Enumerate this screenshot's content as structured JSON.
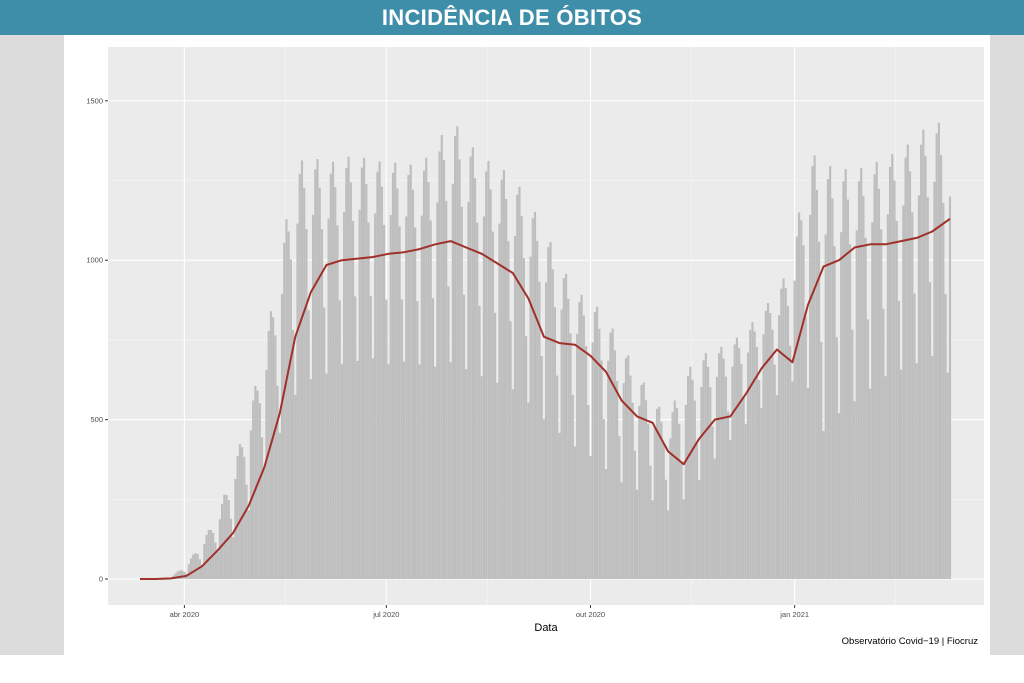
{
  "header": {
    "title": "INCIDÊNCIA DE ÓBITOS"
  },
  "caption": "Observatório Covid−19 | Fiocruz",
  "colors": {
    "header_bg": "#3e8ea9",
    "panel_bg": "#ebebeb",
    "bar": "#bebebe",
    "line": "#a0302a"
  },
  "chart_data": {
    "type": "bar",
    "xlabel": "Data",
    "ylabel": "",
    "ylim": [
      0,
      1650
    ],
    "yticks": [
      0,
      500,
      1000,
      1500
    ],
    "xticks": [
      {
        "date": "2020-04-01",
        "label": "abr 2020"
      },
      {
        "date": "2020-07-01",
        "label": "jul 2020"
      },
      {
        "date": "2020-10-01",
        "label": "out 2020"
      },
      {
        "date": "2021-01-01",
        "label": "jan 2021"
      }
    ],
    "grid": true,
    "start_date": "2020-03-12",
    "end_date": "2021-03-12",
    "series": [
      {
        "kind": "bar",
        "dates": [
          "2020-03-12",
          "2020-03-19",
          "2020-03-26",
          "2020-04-02",
          "2020-04-09",
          "2020-04-16",
          "2020-04-23",
          "2020-04-30",
          "2020-05-07",
          "2020-05-14",
          "2020-05-21",
          "2020-05-28",
          "2020-06-04",
          "2020-06-11",
          "2020-06-18",
          "2020-06-25",
          "2020-07-02",
          "2020-07-09",
          "2020-07-16",
          "2020-07-23",
          "2020-07-30",
          "2020-08-06",
          "2020-08-13",
          "2020-08-20",
          "2020-08-27",
          "2020-09-03",
          "2020-09-10",
          "2020-09-17",
          "2020-09-24",
          "2020-10-01",
          "2020-10-08",
          "2020-10-15",
          "2020-10-22",
          "2020-10-29",
          "2020-11-05",
          "2020-11-12",
          "2020-11-19",
          "2020-11-26",
          "2020-12-03",
          "2020-12-10",
          "2020-12-17",
          "2020-12-24",
          "2020-12-31",
          "2021-01-07",
          "2021-01-14",
          "2021-01-21",
          "2021-01-28",
          "2021-02-04",
          "2021-02-11",
          "2021-02-18",
          "2021-02-25",
          "2021-03-04",
          "2021-03-12"
        ],
        "lows": [
          0,
          0,
          2,
          15,
          40,
          80,
          120,
          200,
          330,
          430,
          540,
          590,
          610,
          640,
          650,
          660,
          640,
          650,
          640,
          630,
          640,
          620,
          600,
          580,
          560,
          520,
          470,
          430,
          390,
          360,
          320,
          280,
          260,
          230,
          200,
          230,
          290,
          360,
          420,
          470,
          520,
          560,
          600,
          560,
          420,
          480,
          520,
          560,
          600,
          620,
          640,
          660,
          600
        ],
        "highs": [
          0,
          1,
          8,
          45,
          120,
          200,
          350,
          520,
          720,
          1000,
          1300,
          1330,
          1300,
          1320,
          1330,
          1310,
          1310,
          1300,
          1300,
          1350,
          1450,
          1380,
          1320,
          1300,
          1260,
          1190,
          1100,
          1000,
          900,
          880,
          820,
          740,
          650,
          570,
          500,
          640,
          700,
          720,
          740,
          780,
          840,
          900,
          1000,
          1350,
          1300,
          1290,
          1280,
          1300,
          1320,
          1350,
          1380,
          1450,
          1400
        ]
      },
      {
        "kind": "line",
        "dates": [
          "2020-03-12",
          "2020-03-19",
          "2020-03-26",
          "2020-04-02",
          "2020-04-09",
          "2020-04-16",
          "2020-04-23",
          "2020-04-30",
          "2020-05-07",
          "2020-05-14",
          "2020-05-21",
          "2020-05-28",
          "2020-06-04",
          "2020-06-11",
          "2020-06-18",
          "2020-06-25",
          "2020-07-02",
          "2020-07-09",
          "2020-07-16",
          "2020-07-23",
          "2020-07-30",
          "2020-08-06",
          "2020-08-13",
          "2020-08-20",
          "2020-08-27",
          "2020-09-03",
          "2020-09-10",
          "2020-09-17",
          "2020-09-24",
          "2020-10-01",
          "2020-10-08",
          "2020-10-15",
          "2020-10-22",
          "2020-10-29",
          "2020-11-05",
          "2020-11-12",
          "2020-11-19",
          "2020-11-26",
          "2020-12-03",
          "2020-12-10",
          "2020-12-17",
          "2020-12-24",
          "2020-12-31",
          "2021-01-07",
          "2021-01-14",
          "2021-01-21",
          "2021-01-28",
          "2021-02-04",
          "2021-02-11",
          "2021-02-18",
          "2021-02-25",
          "2021-03-04",
          "2021-03-12"
        ],
        "values": [
          0,
          0,
          2,
          10,
          40,
          90,
          145,
          230,
          350,
          520,
          760,
          900,
          985,
          1000,
          1005,
          1010,
          1020,
          1025,
          1035,
          1050,
          1060,
          1040,
          1020,
          990,
          960,
          880,
          760,
          740,
          735,
          700,
          650,
          560,
          510,
          490,
          400,
          360,
          440,
          500,
          510,
          580,
          660,
          720,
          680,
          860,
          980,
          1000,
          1040,
          1050,
          1050,
          1060,
          1070,
          1090,
          1130
        ]
      }
    ]
  }
}
